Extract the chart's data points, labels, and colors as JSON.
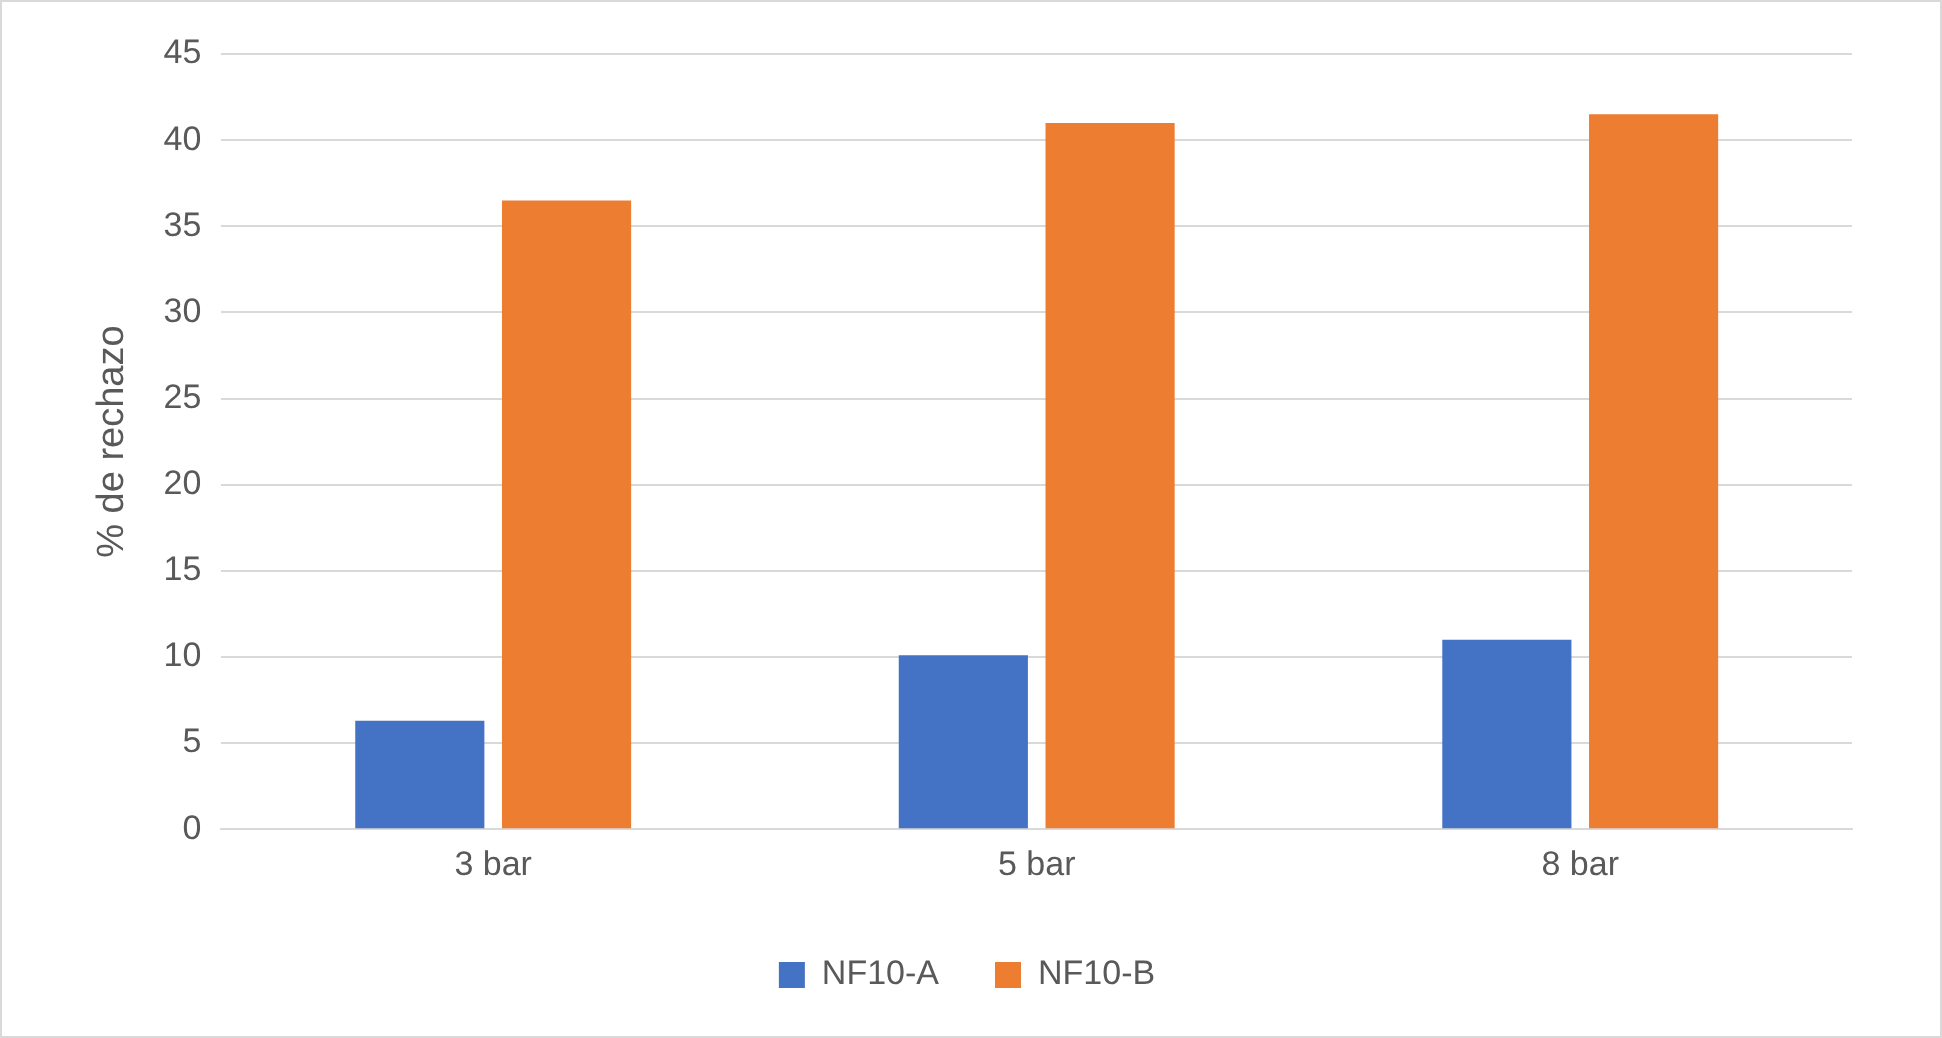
{
  "chart_data": {
    "type": "bar",
    "ylabel": "% de rechazo",
    "categories": [
      "3 bar",
      "5 bar",
      "8 bar"
    ],
    "series": [
      {
        "name": "NF10-A",
        "color": "#4472c4",
        "values": [
          6.3,
          10.1,
          11.0
        ]
      },
      {
        "name": "NF10-B",
        "color": "#ed7d31",
        "values": [
          36.5,
          41.0,
          41.5
        ]
      }
    ],
    "ylim": [
      0,
      45
    ],
    "yticks": [
      0,
      5,
      10,
      15,
      20,
      25,
      30,
      35,
      40,
      45
    ],
    "grid": "y",
    "legend": "bottom"
  }
}
